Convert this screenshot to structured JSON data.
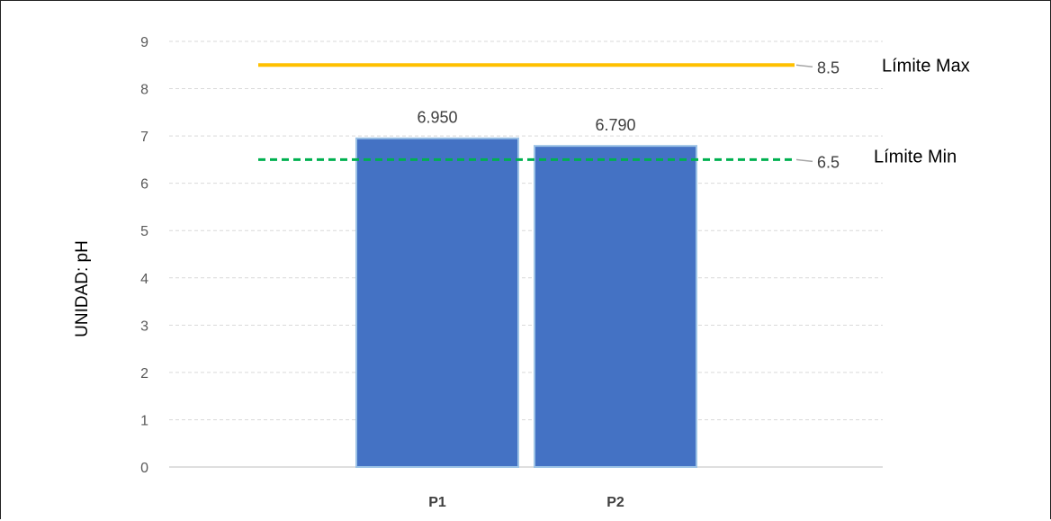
{
  "chart_data": {
    "type": "bar",
    "categories": [
      "P1",
      "P2"
    ],
    "values": [
      6.95,
      6.79
    ],
    "data_labels": [
      "6.950",
      "6.790"
    ],
    "xlabel": "",
    "ylabel": "UNIDAD: pH",
    "ylim": [
      0,
      9
    ],
    "yticks": [
      0,
      1,
      2,
      3,
      4,
      5,
      6,
      7,
      8,
      9
    ],
    "grid": true,
    "bar_color": "#4472C4",
    "reference_lines": [
      {
        "name": "Límite Max",
        "value": 8.5,
        "value_label": "8.5",
        "color": "#FFC000",
        "style": "solid"
      },
      {
        "name": "Límite Min",
        "value": 6.5,
        "value_label": "6.5",
        "color": "#00B050",
        "style": "dashed"
      }
    ]
  }
}
